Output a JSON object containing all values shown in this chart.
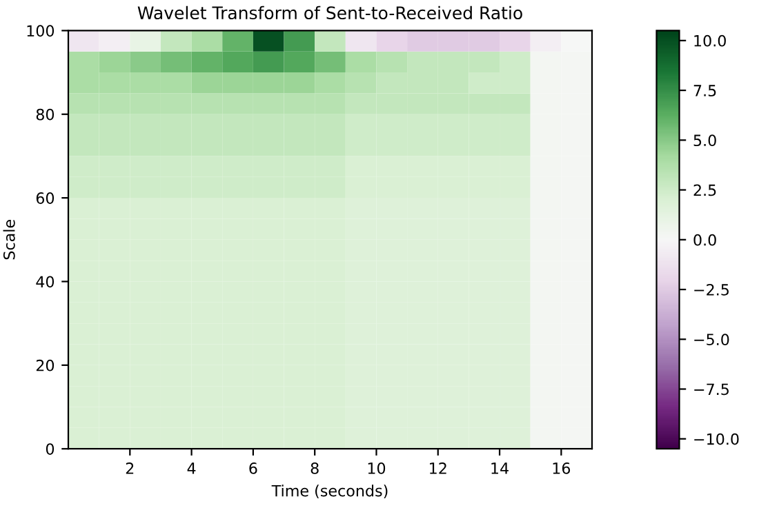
{
  "chart_data": {
    "type": "heatmap",
    "title": "Wavelet Transform of Sent-to-Received Ratio",
    "xlabel": "Time (seconds)",
    "ylabel": "Scale",
    "x": [
      0.5,
      1.5,
      2.5,
      3.5,
      4.5,
      5.5,
      6.5,
      7.5,
      8.5,
      9.5,
      10.5,
      11.5,
      12.5,
      13.5,
      14.5,
      15.5,
      16.5
    ],
    "xlim": [
      0,
      17
    ],
    "xticks": [
      2,
      4,
      6,
      8,
      10,
      12,
      14,
      16
    ],
    "ylim": [
      0,
      100
    ],
    "yticks": [
      0,
      20,
      40,
      60,
      80,
      100
    ],
    "clim": [
      -10.5,
      10.5
    ],
    "cticks": [
      {
        "value": -10,
        "label": "−10.0"
      },
      {
        "value": -7.5,
        "label": "−7.5"
      },
      {
        "value": -5,
        "label": "−5.0"
      },
      {
        "value": -2.5,
        "label": "−2.5"
      },
      {
        "value": 0,
        "label": "0.0"
      },
      {
        "value": 2.5,
        "label": "2.5"
      },
      {
        "value": 5,
        "label": "5.0"
      },
      {
        "value": 7.5,
        "label": "7.5"
      },
      {
        "value": 10,
        "label": "10.0"
      }
    ],
    "cells": [
      [
        -1,
        -0.5,
        1,
        3,
        4,
        6,
        10,
        7,
        3,
        -1,
        -2,
        -2.5,
        -2.5,
        -2.5,
        -2,
        -0.5,
        0
      ],
      [
        4,
        4.5,
        5,
        5.5,
        6,
        6.5,
        7,
        6.5,
        5.5,
        4,
        3.5,
        3,
        3,
        3,
        2.5,
        0.3,
        0.2
      ],
      [
        4,
        4,
        4,
        4,
        4.5,
        4.5,
        4.5,
        4.5,
        4,
        3.5,
        3,
        3,
        3,
        2.5,
        2.5,
        0.3,
        0.2
      ],
      [
        3.5,
        3.5,
        3.5,
        3.5,
        3.5,
        3.5,
        3.5,
        3.5,
        3.5,
        3,
        3,
        3,
        3,
        3,
        3,
        0.3,
        0.2
      ],
      [
        3,
        3,
        3,
        3,
        3,
        3,
        3,
        3,
        3,
        2.5,
        2.5,
        2.5,
        2.5,
        2.5,
        2.5,
        0.3,
        0.2
      ],
      [
        3,
        3,
        3,
        3,
        3,
        3,
        3,
        3,
        3,
        2.5,
        2.5,
        2.5,
        2.5,
        2.5,
        2.5,
        0.3,
        0.2
      ],
      [
        2.5,
        2.5,
        2.5,
        2.5,
        2.5,
        2.5,
        2.5,
        2.5,
        2.5,
        2,
        2,
        2,
        2,
        2,
        2,
        0.3,
        0.2
      ],
      [
        2.5,
        2.5,
        2.5,
        2.5,
        2.5,
        2.5,
        2.5,
        2.5,
        2.5,
        2,
        2,
        2,
        2,
        2,
        2,
        0.3,
        0.2
      ],
      [
        2,
        2,
        2,
        2,
        2,
        2,
        2,
        2,
        2,
        1.8,
        1.8,
        1.8,
        1.8,
        1.8,
        1.8,
        0.3,
        0.2
      ],
      [
        2,
        2,
        2,
        2,
        2,
        2,
        2,
        2,
        2,
        1.8,
        1.8,
        1.8,
        1.8,
        1.8,
        1.8,
        0.3,
        0.2
      ],
      [
        2,
        2,
        2,
        2,
        2,
        2,
        2,
        2,
        2,
        1.8,
        1.8,
        1.8,
        1.8,
        1.8,
        1.8,
        0.3,
        0.2
      ],
      [
        2,
        2,
        2,
        2,
        2,
        2,
        2,
        2,
        2,
        1.8,
        1.8,
        1.8,
        1.8,
        1.8,
        1.8,
        0.3,
        0.2
      ],
      [
        2,
        2,
        2,
        2,
        2,
        2,
        2,
        2,
        2,
        1.8,
        1.8,
        1.8,
        1.8,
        1.8,
        1.8,
        0.3,
        0.2
      ],
      [
        2,
        2,
        2,
        2,
        2,
        2,
        2,
        2,
        2,
        1.8,
        1.8,
        1.8,
        1.8,
        1.8,
        1.8,
        0.3,
        0.2
      ],
      [
        2,
        2,
        2,
        2,
        2,
        2,
        2,
        2,
        2,
        1.8,
        1.8,
        1.8,
        1.8,
        1.8,
        1.8,
        0.3,
        0.2
      ],
      [
        2,
        2,
        2,
        2,
        2,
        2,
        2,
        2,
        2,
        1.8,
        1.8,
        1.8,
        1.8,
        1.8,
        1.8,
        0.3,
        0.2
      ],
      [
        2,
        2,
        2,
        2,
        2,
        2,
        2,
        2,
        2,
        1.8,
        1.8,
        1.8,
        1.8,
        1.8,
        1.8,
        0.3,
        0.2
      ],
      [
        2,
        2,
        2,
        2,
        2,
        2,
        2,
        2,
        2,
        1.8,
        1.8,
        1.8,
        1.8,
        1.8,
        1.8,
        0.3,
        0.2
      ],
      [
        2,
        2,
        2,
        2,
        2,
        2,
        2,
        2,
        2,
        1.8,
        1.8,
        1.8,
        1.8,
        1.8,
        1.8,
        0.3,
        0.2
      ],
      [
        2,
        2,
        2,
        2,
        2,
        2,
        2,
        2,
        2,
        1.8,
        1.8,
        1.8,
        1.8,
        1.8,
        1.8,
        0.3,
        0.2
      ]
    ]
  }
}
